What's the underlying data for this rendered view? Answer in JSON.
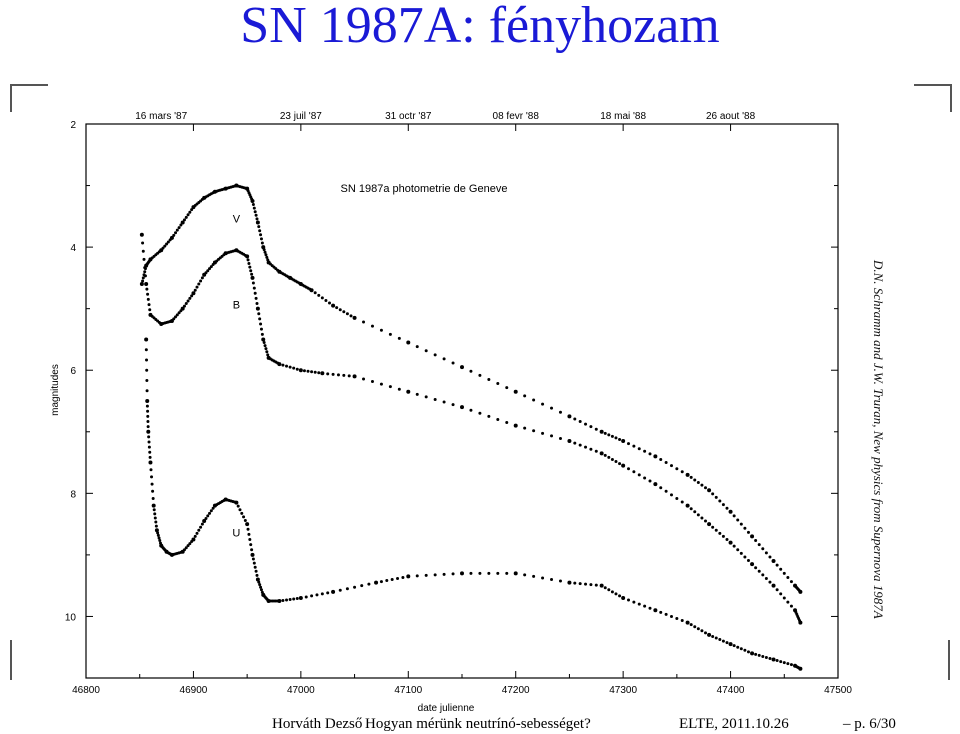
{
  "slide": {
    "title": "SN 1987A: fényhozam",
    "side_credit": "D.N. Schramm and J.W. Truran, New physics from Supernova 1987A",
    "footer": {
      "author": "Horváth Dezső",
      "talk": "Hogyan mérünk neutrínó-sebességet?",
      "date": "ELTE, 2011.10.26",
      "page": "– p. 6/30"
    }
  },
  "chart_data": {
    "type": "scatter",
    "title": "SN 1987a photometrie de Geneve",
    "xlabel": "date julienne",
    "ylabel": "magnitudes",
    "xlim": [
      46800,
      47500
    ],
    "ylim": [
      11,
      2
    ],
    "y_inverted": true,
    "x_ticks": [
      46800,
      46900,
      47000,
      47100,
      47200,
      47300,
      47400,
      47500
    ],
    "y_ticks": [
      2,
      4,
      6,
      8,
      10
    ],
    "top_axis_labels": [
      {
        "x": 46870,
        "label": "16 mars '87"
      },
      {
        "x": 47000,
        "label": "23 juil '87"
      },
      {
        "x": 47100,
        "label": "31 octr '87"
      },
      {
        "x": 47200,
        "label": "08 fevr '88"
      },
      {
        "x": 47300,
        "label": "18 mai '88"
      },
      {
        "x": 47400,
        "label": "26 aout '88"
      }
    ],
    "series": [
      {
        "name": "V",
        "label_at": [
          46940,
          3.6
        ],
        "x": [
          46852,
          46856,
          46860,
          46870,
          46880,
          46890,
          46900,
          46910,
          46920,
          46930,
          46940,
          46950,
          46955,
          46960,
          46965,
          46970,
          46980,
          46990,
          47000,
          47010,
          47030,
          47050,
          47100,
          47150,
          47200,
          47250,
          47280,
          47300,
          47330,
          47360,
          47380,
          47400,
          47420,
          47440,
          47460,
          47465
        ],
        "y": [
          4.6,
          4.3,
          4.2,
          4.05,
          3.85,
          3.6,
          3.35,
          3.2,
          3.1,
          3.05,
          3.0,
          3.05,
          3.25,
          3.6,
          4.0,
          4.25,
          4.4,
          4.5,
          4.6,
          4.7,
          4.95,
          5.15,
          5.55,
          5.95,
          6.35,
          6.75,
          7.0,
          7.15,
          7.4,
          7.7,
          7.95,
          8.3,
          8.7,
          9.1,
          9.5,
          9.6
        ]
      },
      {
        "name": "B",
        "label_at": [
          46940,
          5.0
        ],
        "x": [
          46852,
          46856,
          46860,
          46870,
          46880,
          46890,
          46900,
          46910,
          46920,
          46930,
          46940,
          46950,
          46955,
          46960,
          46965,
          46970,
          46980,
          47000,
          47020,
          47050,
          47100,
          47150,
          47200,
          47250,
          47280,
          47300,
          47330,
          47360,
          47380,
          47400,
          47420,
          47440,
          47460,
          47465
        ],
        "y": [
          3.8,
          4.6,
          5.1,
          5.25,
          5.2,
          5.0,
          4.75,
          4.45,
          4.25,
          4.1,
          4.05,
          4.15,
          4.5,
          5.0,
          5.5,
          5.8,
          5.9,
          6.0,
          6.05,
          6.1,
          6.35,
          6.6,
          6.9,
          7.15,
          7.35,
          7.55,
          7.85,
          8.2,
          8.5,
          8.8,
          9.15,
          9.5,
          9.9,
          10.1
        ]
      },
      {
        "name": "U",
        "label_at": [
          46940,
          8.7
        ],
        "x": [
          46856,
          46857,
          46858,
          46860,
          46863,
          46866,
          46870,
          46875,
          46880,
          46890,
          46900,
          46910,
          46920,
          46930,
          46940,
          46950,
          46955,
          46960,
          46965,
          46970,
          46980,
          47000,
          47030,
          47070,
          47100,
          47150,
          47200,
          47250,
          47280,
          47300,
          47330,
          47360,
          47380,
          47400,
          47420,
          47440,
          47460,
          47465
        ],
        "y": [
          5.5,
          6.5,
          7.0,
          7.5,
          8.2,
          8.6,
          8.85,
          8.95,
          9.0,
          8.95,
          8.75,
          8.45,
          8.2,
          8.1,
          8.15,
          8.5,
          9.0,
          9.4,
          9.65,
          9.75,
          9.75,
          9.7,
          9.6,
          9.45,
          9.35,
          9.3,
          9.3,
          9.45,
          9.5,
          9.7,
          9.9,
          10.1,
          10.3,
          10.45,
          10.6,
          10.7,
          10.8,
          10.85
        ]
      }
    ]
  }
}
